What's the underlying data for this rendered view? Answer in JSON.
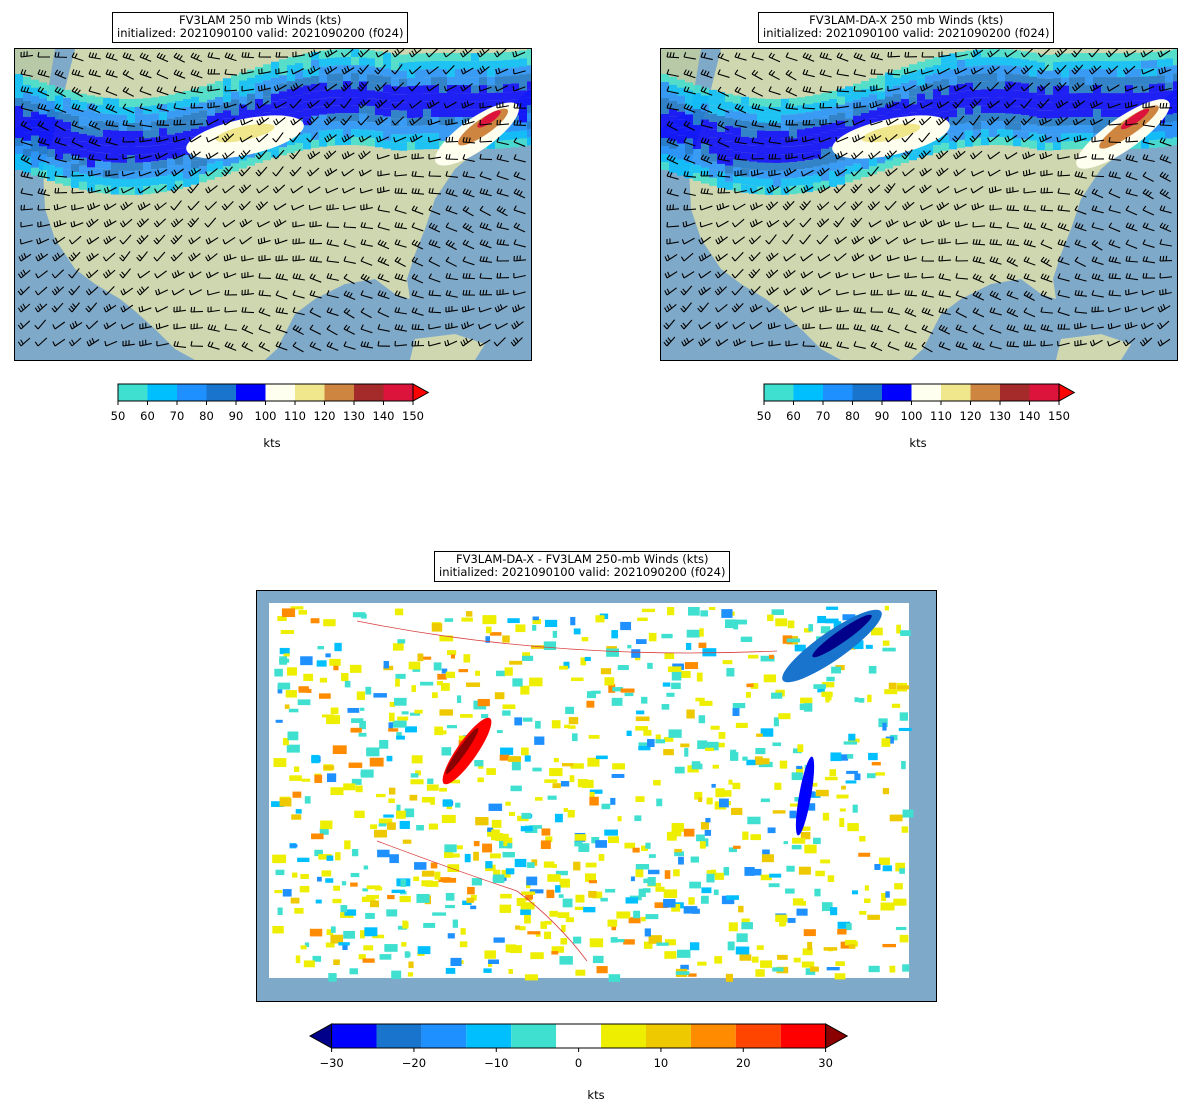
{
  "panels": [
    {
      "title_line1": "FV3LAM 250 mb Winds (kts)",
      "title_line2": "initialized: 2021090100 valid: 2021090200 (f024)"
    },
    {
      "title_line1": "FV3LAM-DA-X 250 mb Winds (kts)",
      "title_line2": "initialized: 2021090100 valid: 2021090200 (f024)"
    },
    {
      "title_line1": "FV3LAM-DA-X - FV3LAM 250-mb Winds (kts)",
      "title_line2": "initialized: 2021090100 valid: 2021090200 (f024)"
    }
  ],
  "wind_colorbar": {
    "ticks": [
      "50",
      "60",
      "70",
      "80",
      "90",
      "100",
      "110",
      "120",
      "130",
      "140",
      "150"
    ],
    "colors": [
      "#40e0d0",
      "#00bfff",
      "#1e90ff",
      "#1874cd",
      "#0000ff",
      "#fffff0",
      "#f0e68c",
      "#cd853f",
      "#a52a2a",
      "#dc143c"
    ],
    "extend_color": "#ff0000",
    "units": "kts"
  },
  "diff_colorbar": {
    "ticks": [
      "−30",
      "−20",
      "−10",
      "0",
      "10",
      "20",
      "30"
    ],
    "colors": [
      "#0000ff",
      "#1874cd",
      "#1e90ff",
      "#00bfff",
      "#40e0d0",
      "#ffffff",
      "#eeee00",
      "#eec900",
      "#ff8c00",
      "#ff4500",
      "#ff0000"
    ],
    "extend_low_color": "#00008b",
    "extend_high_color": "#8b0000",
    "units": "kts"
  }
}
